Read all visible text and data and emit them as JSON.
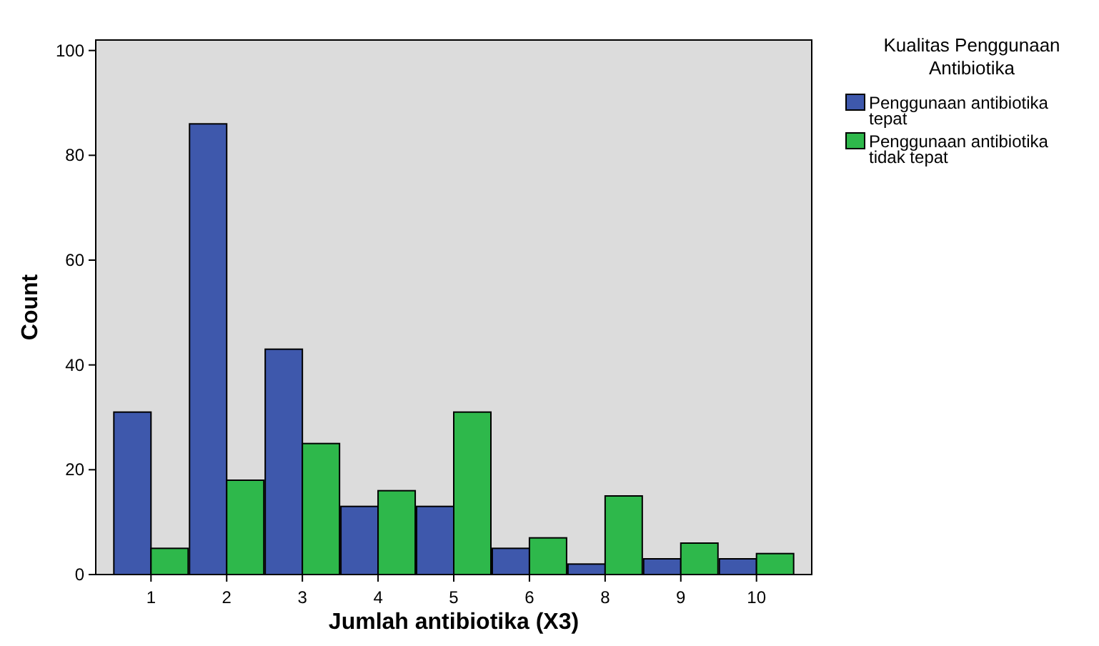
{
  "chart_data": {
    "type": "bar",
    "xlabel": "Jumlah antibiotika (X3)",
    "ylabel": "Count",
    "legend_title": "Kualitas Penggunaan Antibiotika",
    "categories": [
      "1",
      "2",
      "3",
      "4",
      "5",
      "6",
      "8",
      "9",
      "10"
    ],
    "series": [
      {
        "name": "Penggunaan antibiotika tepat",
        "color": "#3e58ac",
        "values": [
          31,
          86,
          43,
          13,
          13,
          5,
          2,
          3,
          3
        ]
      },
      {
        "name": "Penggunaan antibiotika tidak tepat",
        "color": "#2eb84b",
        "values": [
          5,
          18,
          25,
          16,
          31,
          7,
          15,
          6,
          4
        ]
      }
    ],
    "ylim": [
      0,
      102
    ],
    "yticks": [
      0,
      20,
      40,
      60,
      80,
      100
    ],
    "grid": false,
    "legend": "right"
  }
}
